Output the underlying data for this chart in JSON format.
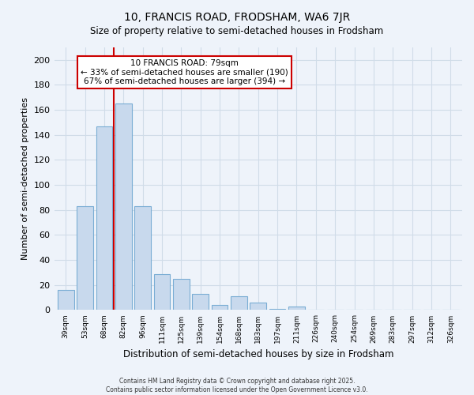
{
  "title": "10, FRANCIS ROAD, FRODSHAM, WA6 7JR",
  "subtitle": "Size of property relative to semi-detached houses in Frodsham",
  "xlabel": "Distribution of semi-detached houses by size in Frodsham",
  "ylabel": "Number of semi-detached properties",
  "bar_labels": [
    "39sqm",
    "53sqm",
    "68sqm",
    "82sqm",
    "96sqm",
    "111sqm",
    "125sqm",
    "139sqm",
    "154sqm",
    "168sqm",
    "183sqm",
    "197sqm",
    "211sqm",
    "226sqm",
    "240sqm",
    "254sqm",
    "269sqm",
    "283sqm",
    "297sqm",
    "312sqm",
    "326sqm"
  ],
  "bar_values": [
    16,
    83,
    147,
    165,
    83,
    29,
    25,
    13,
    4,
    11,
    6,
    1,
    3,
    0,
    0,
    0,
    0,
    0,
    0,
    0,
    0
  ],
  "bar_color": "#c8d9ed",
  "bar_edge_color": "#7aadd4",
  "vline_color": "#cc0000",
  "ylim": [
    0,
    210
  ],
  "yticks": [
    0,
    20,
    40,
    60,
    80,
    100,
    120,
    140,
    160,
    180,
    200
  ],
  "annotation_title": "10 FRANCIS ROAD: 79sqm",
  "annotation_line1": "← 33% of semi-detached houses are smaller (190)",
  "annotation_line2": "67% of semi-detached houses are larger (394) →",
  "footer_line1": "Contains HM Land Registry data © Crown copyright and database right 2025.",
  "footer_line2": "Contains public sector information licensed under the Open Government Licence v3.0.",
  "bg_color": "#eef3fa",
  "grid_color": "#d0dce8"
}
